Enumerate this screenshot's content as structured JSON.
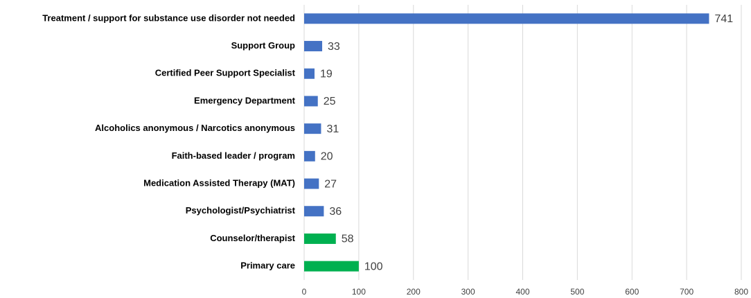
{
  "chart_data": {
    "type": "bar",
    "orientation": "horizontal",
    "categories": [
      "Treatment / support for substance use disorder  not needed",
      "Support Group",
      "Certified Peer Support Specialist",
      "Emergency Department",
      "Alcoholics anonymous / Narcotics anonymous",
      "Faith-based leader / program",
      "Medication Assisted Therapy (MAT)",
      "Psychologist/Psychiatrist",
      "Counselor/therapist",
      "Primary care"
    ],
    "values": [
      741,
      33,
      19,
      25,
      31,
      20,
      27,
      36,
      58,
      100
    ],
    "colors": [
      "#4472c4",
      "#4472c4",
      "#4472c4",
      "#4472c4",
      "#4472c4",
      "#4472c4",
      "#4472c4",
      "#4472c4",
      "#00b050",
      "#00b050"
    ],
    "xlim": [
      0,
      800
    ],
    "xticks": [
      0,
      100,
      200,
      300,
      400,
      500,
      600,
      700,
      800
    ],
    "grid": true
  }
}
